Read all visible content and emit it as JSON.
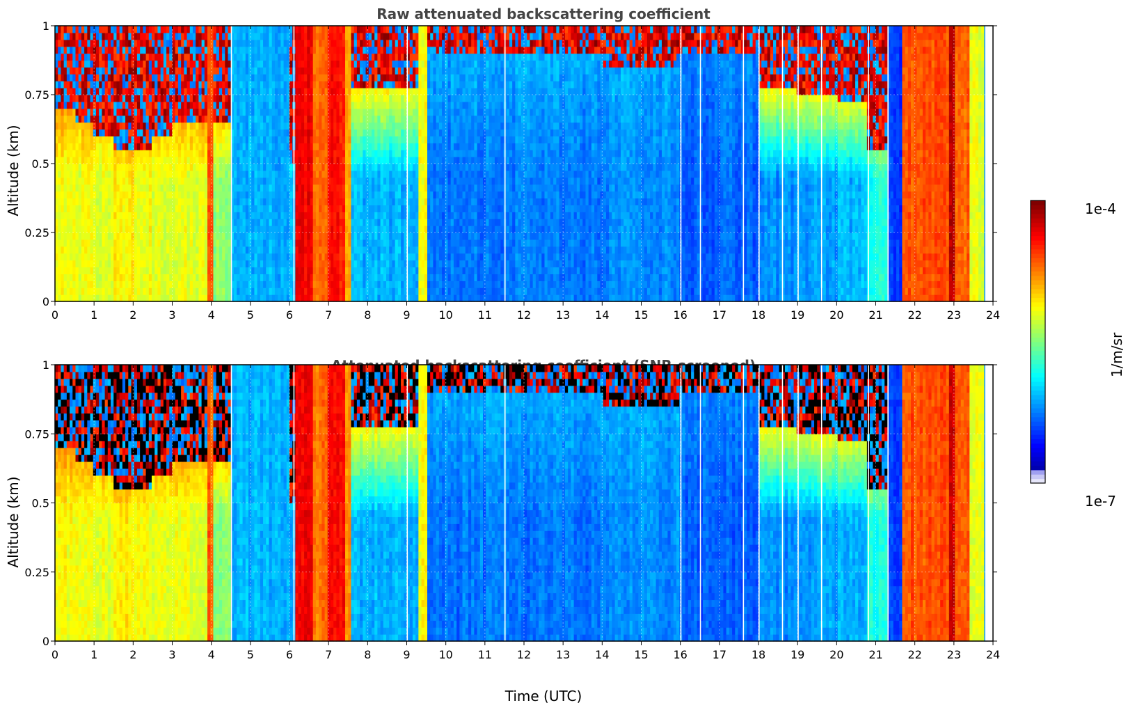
{
  "chart_data": [
    {
      "type": "heatmap",
      "title": "Raw attenuated backscattering coefficient",
      "xlabel": "",
      "ylabel": "Altitude (km)",
      "xlim": [
        0,
        24
      ],
      "ylim": [
        0,
        1
      ],
      "x_ticks": [
        "0",
        "1",
        "2",
        "3",
        "4",
        "5",
        "6",
        "7",
        "8",
        "9",
        "10",
        "11",
        "12",
        "13",
        "14",
        "15",
        "16",
        "17",
        "18",
        "19",
        "20",
        "21",
        "22",
        "23",
        "24"
      ],
      "y_ticks": [
        "0",
        "0.25",
        "0.5",
        "0.75",
        "1"
      ],
      "grid": true,
      "time_columns": [
        {
          "t0": 0.0,
          "t1": 0.5,
          "base": 0.62,
          "top": 0.82,
          "height_peak": 0.7
        },
        {
          "t0": 0.5,
          "t1": 1.0,
          "base": 0.6,
          "top": 0.8,
          "height_peak": 0.65
        },
        {
          "t0": 1.0,
          "t1": 1.5,
          "base": 0.6,
          "top": 0.82,
          "height_peak": 0.6
        },
        {
          "t0": 1.5,
          "t1": 2.0,
          "base": 0.64,
          "top": 0.9,
          "height_peak": 0.55
        },
        {
          "t0": 2.0,
          "t1": 2.5,
          "base": 0.62,
          "top": 0.86,
          "height_peak": 0.55
        },
        {
          "t0": 2.5,
          "t1": 3.0,
          "base": 0.6,
          "top": 0.84,
          "height_peak": 0.6
        },
        {
          "t0": 3.0,
          "t1": 3.5,
          "base": 0.6,
          "top": 0.82,
          "height_peak": 0.65
        },
        {
          "t0": 3.5,
          "t1": 3.9,
          "base": 0.6,
          "top": 0.85,
          "height_peak": 0.65
        },
        {
          "t0": 3.9,
          "t1": 4.05,
          "base": 0.78,
          "top": 0.78,
          "height_peak": 1.0
        },
        {
          "t0": 4.05,
          "t1": 4.5,
          "base": 0.52,
          "top": 0.9,
          "height_peak": 0.65
        },
        {
          "t0": 4.5,
          "t1": 6.0,
          "base": 0.3,
          "top": 0.3,
          "height_peak": 1.0
        },
        {
          "t0": 6.0,
          "t1": 6.15,
          "base": 0.3,
          "top": 0.92,
          "height_peak": 0.5
        },
        {
          "t0": 6.15,
          "t1": 6.6,
          "base": 0.88,
          "top": 0.88,
          "height_peak": 1.0
        },
        {
          "t0": 6.6,
          "t1": 7.0,
          "base": 0.76,
          "top": 0.76,
          "height_peak": 1.0
        },
        {
          "t0": 7.0,
          "t1": 7.4,
          "base": 0.86,
          "top": 0.86,
          "height_peak": 1.0
        },
        {
          "t0": 7.4,
          "t1": 7.6,
          "base": 0.72,
          "top": 0.72,
          "height_peak": 1.0
        },
        {
          "t0": 7.6,
          "t1": 9.3,
          "base": 0.3,
          "top": 0.8,
          "height_peak": 0.78
        },
        {
          "t0": 9.3,
          "t1": 9.55,
          "base": 0.62,
          "top": 0.62,
          "height_peak": 1.0
        },
        {
          "t0": 9.55,
          "t1": 14.0,
          "base": 0.24,
          "top": 0.3,
          "height_peak": 0.9
        },
        {
          "t0": 14.0,
          "t1": 16.0,
          "base": 0.26,
          "top": 0.3,
          "height_peak": 0.85
        },
        {
          "t0": 16.0,
          "t1": 18.0,
          "base": 0.22,
          "top": 0.26,
          "height_peak": 0.9
        },
        {
          "t0": 18.0,
          "t1": 19.0,
          "base": 0.26,
          "top": 0.8,
          "height_peak": 0.78
        },
        {
          "t0": 19.0,
          "t1": 20.0,
          "base": 0.28,
          "top": 0.82,
          "height_peak": 0.75
        },
        {
          "t0": 20.0,
          "t1": 20.8,
          "base": 0.3,
          "top": 0.84,
          "height_peak": 0.72
        },
        {
          "t0": 20.8,
          "t1": 21.3,
          "base": 0.4,
          "top": 0.92,
          "height_peak": 0.55
        },
        {
          "t0": 21.3,
          "t1": 21.7,
          "base": 0.18,
          "top": 0.18,
          "height_peak": 1.0
        },
        {
          "t0": 21.7,
          "t1": 22.9,
          "base": 0.8,
          "top": 0.8,
          "height_peak": 1.0
        },
        {
          "t0": 22.9,
          "t1": 23.0,
          "base": 0.95,
          "top": 0.95,
          "height_peak": 1.0
        },
        {
          "t0": 23.0,
          "t1": 23.4,
          "base": 0.78,
          "top": 0.78,
          "height_peak": 1.0
        },
        {
          "t0": 23.4,
          "t1": 23.8,
          "base": 0.6,
          "top": 0.6,
          "height_peak": 1.0
        }
      ]
    },
    {
      "type": "heatmap",
      "title": "Attenuated backscattering coefficient (SNR-screened)",
      "xlabel": "Time (UTC)",
      "ylabel": "Altitude (km)",
      "xlim": [
        0,
        24
      ],
      "ylim": [
        0,
        1
      ],
      "x_ticks": [
        "0",
        "1",
        "2",
        "3",
        "4",
        "5",
        "6",
        "7",
        "8",
        "9",
        "10",
        "11",
        "12",
        "13",
        "14",
        "15",
        "16",
        "17",
        "18",
        "19",
        "20",
        "21",
        "22",
        "23",
        "24"
      ],
      "y_ticks": [
        "0",
        "0.25",
        "0.5",
        "0.75",
        "1"
      ],
      "grid": true,
      "screened": true
    }
  ],
  "colorbar": {
    "label": "1/m/sr",
    "max_label": "1e-4",
    "min_label": "1e-7",
    "colormap": "jet"
  }
}
